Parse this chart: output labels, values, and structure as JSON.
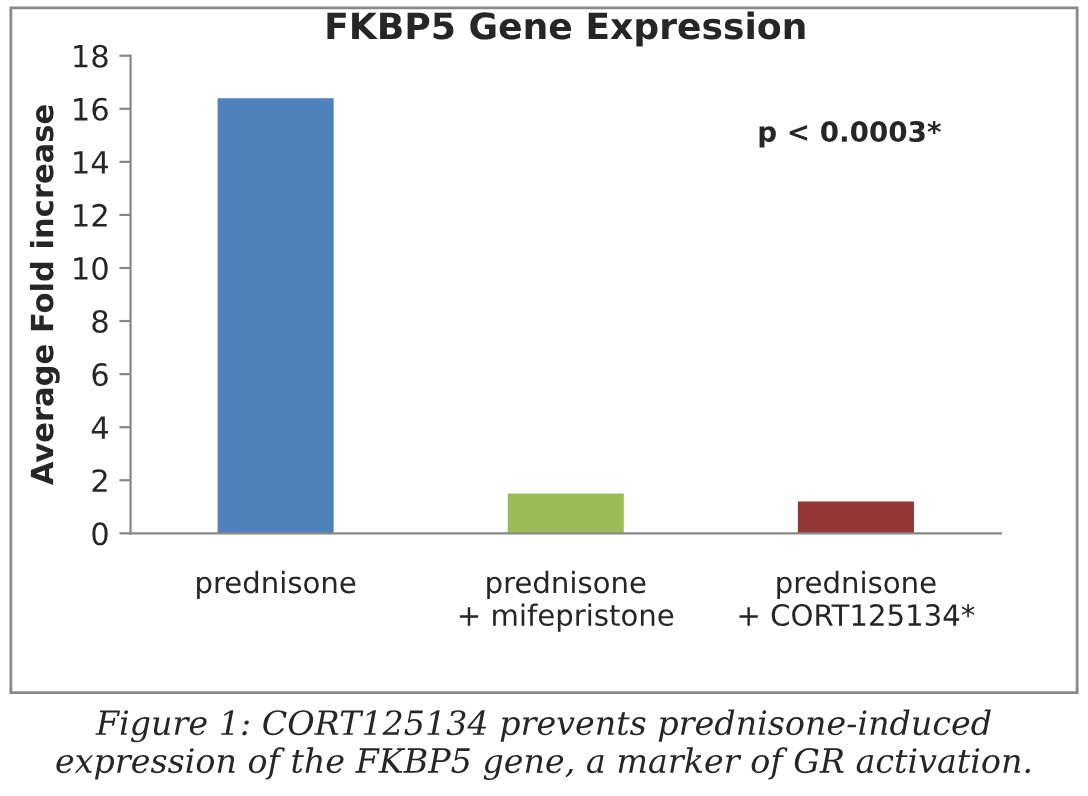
{
  "chart_data": {
    "type": "bar",
    "title": "FKBP5 Gene Expression",
    "ylabel": "Average Fold increase",
    "categories": [
      "prednisone",
      "prednisone\n+ mifepristone",
      "prednisone\n+ CORT125134*"
    ],
    "values": [
      16.4,
      1.5,
      1.2
    ],
    "colors": [
      "#4f81bd",
      "#9bbb59",
      "#943634"
    ],
    "ylim": [
      0,
      18
    ],
    "yticks": [
      0,
      2,
      4,
      6,
      8,
      10,
      12,
      14,
      16,
      18
    ],
    "grid": false,
    "annotations": [
      "p < 0.0003*",
      "Figure 1: CORT125134 prevents prednisone-induced expression of the FKBP5 gene, a marker of GR activation."
    ]
  }
}
